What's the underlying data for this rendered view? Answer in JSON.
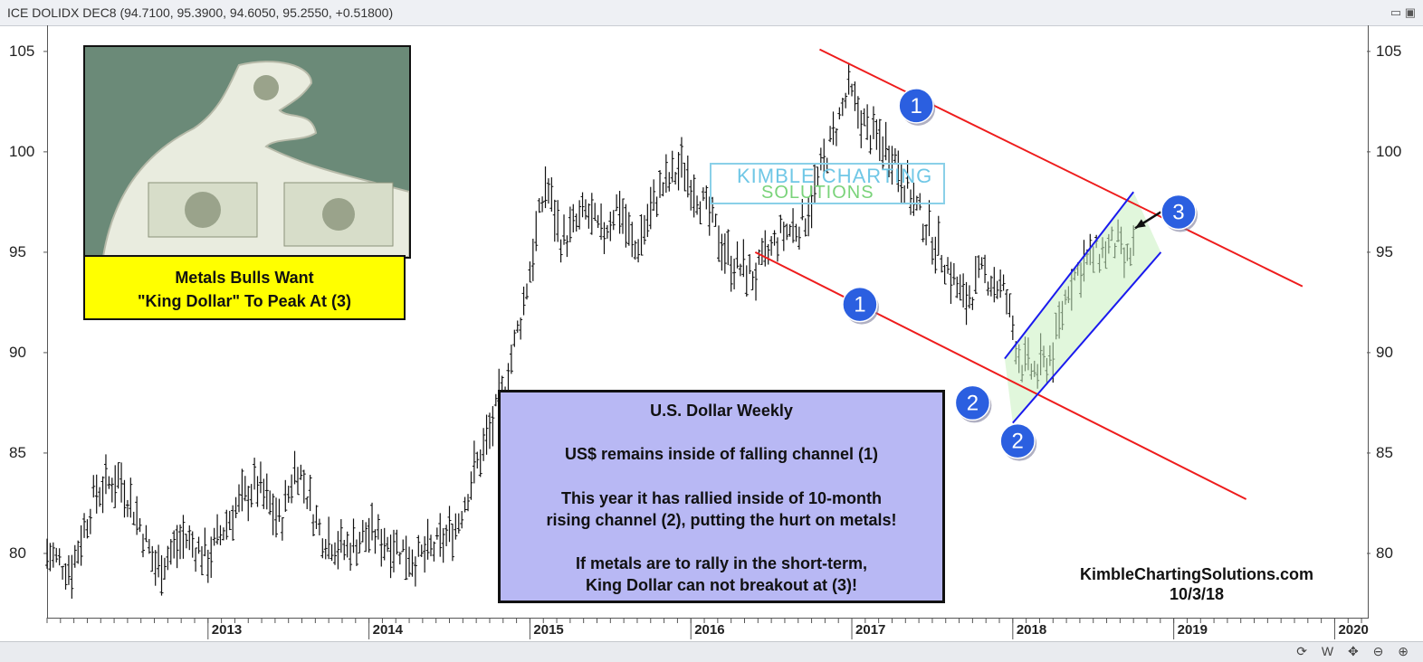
{
  "header": {
    "title": "ICE DOLIDX DEC8 (94.7100, 95.3900, 94.6050, 95.2550, +0.51800)",
    "window_icons": "▭ ▣"
  },
  "image_panel": {
    "caption_line1": "Metals Bulls Want",
    "caption_line2": "\"King Dollar\" To Peak At (3)"
  },
  "info_box": {
    "title": "U.S. Dollar Weekly",
    "line1": "US$ remains inside of falling channel (1)",
    "line2a": "This year it has rallied inside of 10-month",
    "line2b": "rising channel (2), putting the hurt on metals!",
    "line3a": "If metals are to rally in the short-term,",
    "line3b": "King Dollar can not breakout at (3)!"
  },
  "watermark": {
    "top": "KIMBLE CHARTING",
    "bottom": "SOLUTIONS"
  },
  "credit": {
    "site": "KimbleChartingSolutions.com",
    "date": "10/3/18"
  },
  "bottom_toolbar": {
    "tools": "⟳ W ✥ ⊖ ⊕"
  },
  "colors": {
    "falling_channel": "#ee1c1c",
    "rising_channel": "#1a1aee",
    "rising_fill": "#c8f0c0",
    "marker": "#2b5fe0"
  },
  "chart_data": {
    "type": "ohlc",
    "title": "",
    "xlabel": "",
    "ylabel": "",
    "ylim": [
      76.8,
      106.3
    ],
    "xlim": [
      2012.0,
      2020.2
    ],
    "y_ticks": [
      80,
      85,
      90,
      95,
      100,
      105
    ],
    "x_ticks": [
      "2013",
      "2014",
      "2015",
      "2016",
      "2017",
      "2018",
      "2019",
      "2020"
    ],
    "x_tick_values": [
      2013,
      2014,
      2015,
      2016,
      2017,
      2018,
      2019,
      2020
    ],
    "grid": false,
    "series": [
      {
        "price_path": [
          [
            2012.0,
            80.0
          ],
          [
            2012.15,
            79.2
          ],
          [
            2012.3,
            83.0
          ],
          [
            2012.45,
            83.8
          ],
          [
            2012.55,
            82.0
          ],
          [
            2012.68,
            79.2
          ],
          [
            2012.85,
            80.8
          ],
          [
            2013.0,
            79.8
          ],
          [
            2013.15,
            82.0
          ],
          [
            2013.3,
            83.5
          ],
          [
            2013.45,
            81.5
          ],
          [
            2013.55,
            84.5
          ],
          [
            2013.7,
            81.0
          ],
          [
            2013.85,
            80.2
          ],
          [
            2014.0,
            81.0
          ],
          [
            2014.15,
            80.5
          ],
          [
            2014.3,
            79.7
          ],
          [
            2014.45,
            80.5
          ],
          [
            2014.55,
            81.5
          ],
          [
            2014.65,
            84.0
          ],
          [
            2014.75,
            86.0
          ],
          [
            2014.85,
            88.5
          ],
          [
            2014.95,
            92.0
          ],
          [
            2015.1,
            98.5
          ],
          [
            2015.2,
            95.5
          ],
          [
            2015.35,
            97.0
          ],
          [
            2015.45,
            95.8
          ],
          [
            2015.55,
            97.5
          ],
          [
            2015.65,
            95.0
          ],
          [
            2015.8,
            98.0
          ],
          [
            2015.95,
            99.3
          ],
          [
            2016.1,
            97.0
          ],
          [
            2016.25,
            94.5
          ],
          [
            2016.4,
            93.8
          ],
          [
            2016.55,
            95.8
          ],
          [
            2016.7,
            96.5
          ],
          [
            2016.85,
            100.0
          ],
          [
            2016.98,
            103.0
          ],
          [
            2017.1,
            101.0
          ],
          [
            2017.25,
            100.0
          ],
          [
            2017.4,
            97.2
          ],
          [
            2017.55,
            95.0
          ],
          [
            2017.7,
            92.5
          ],
          [
            2017.82,
            94.0
          ],
          [
            2017.95,
            93.0
          ],
          [
            2018.05,
            89.5
          ],
          [
            2018.15,
            89.0
          ],
          [
            2018.25,
            90.0
          ],
          [
            2018.35,
            93.5
          ],
          [
            2018.45,
            94.5
          ],
          [
            2018.55,
            95.0
          ],
          [
            2018.65,
            95.5
          ],
          [
            2018.7,
            94.3
          ],
          [
            2018.75,
            95.3
          ]
        ]
      }
    ],
    "annotations": {
      "falling_channel_upper": [
        [
          2016.8,
          105.1
        ],
        [
          2019.8,
          93.3
        ]
      ],
      "falling_channel_lower": [
        [
          2016.4,
          95.0
        ],
        [
          2019.45,
          82.7
        ]
      ],
      "rising_channel_upper": [
        [
          2017.95,
          89.7
        ],
        [
          2018.75,
          98.0
        ]
      ],
      "rising_channel_lower": [
        [
          2018.0,
          86.5
        ],
        [
          2018.92,
          95.0
        ]
      ],
      "markers": [
        {
          "label": "1",
          "x": 2017.4,
          "y": 102.3
        },
        {
          "label": "1",
          "x": 2017.05,
          "y": 92.4
        },
        {
          "label": "2",
          "x": 2017.75,
          "y": 87.5
        },
        {
          "label": "2",
          "x": 2018.03,
          "y": 85.6
        },
        {
          "label": "3",
          "x": 2019.03,
          "y": 97.0
        }
      ],
      "arrow": {
        "from": [
          2018.92,
          97.0
        ],
        "to": [
          2018.76,
          96.2
        ]
      }
    }
  }
}
